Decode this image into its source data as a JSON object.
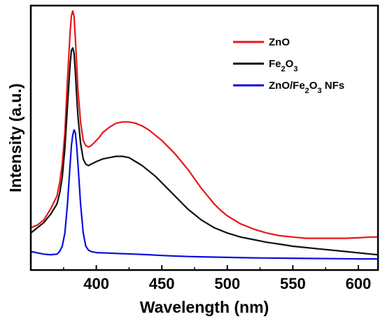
{
  "chart_data": {
    "type": "line",
    "xlabel": "Wavelength (nm)",
    "ylabel": "Intensity (a.u.)",
    "xlim": [
      350,
      615
    ],
    "ylim": [
      0,
      1
    ],
    "xticks": [
      400,
      450,
      500,
      550,
      600
    ],
    "y_ticks_labeled": false,
    "grid": false,
    "legend_position": "top-right",
    "series": [
      {
        "name": "ZnO",
        "color": "#e8161b",
        "x": [
          350,
          355,
          360,
          365,
          370,
          372,
          374,
          376,
          378,
          380,
          381,
          382,
          383,
          384,
          385,
          386,
          388,
          390,
          392,
          394,
          396,
          398,
          400,
          402,
          405,
          410,
          415,
          420,
          425,
          430,
          435,
          440,
          445,
          450,
          455,
          460,
          465,
          470,
          475,
          480,
          485,
          490,
          495,
          500,
          510,
          520,
          530,
          540,
          550,
          560,
          570,
          580,
          590,
          600,
          610,
          615
        ],
        "y": [
          0.16,
          0.17,
          0.19,
          0.23,
          0.28,
          0.33,
          0.4,
          0.52,
          0.72,
          0.9,
          0.96,
          0.98,
          0.96,
          0.88,
          0.78,
          0.68,
          0.56,
          0.49,
          0.47,
          0.465,
          0.47,
          0.48,
          0.49,
          0.5,
          0.52,
          0.54,
          0.555,
          0.56,
          0.56,
          0.555,
          0.545,
          0.53,
          0.51,
          0.49,
          0.465,
          0.44,
          0.41,
          0.38,
          0.345,
          0.31,
          0.28,
          0.25,
          0.225,
          0.205,
          0.175,
          0.155,
          0.14,
          0.13,
          0.125,
          0.12,
          0.12,
          0.12,
          0.12,
          0.122,
          0.125,
          0.125
        ]
      },
      {
        "name": "Fe2O3",
        "color": "#111111",
        "x": [
          350,
          355,
          360,
          365,
          370,
          372,
          374,
          376,
          378,
          380,
          381,
          382,
          383,
          384,
          385,
          386,
          388,
          390,
          392,
          394,
          396,
          398,
          400,
          405,
          410,
          415,
          420,
          425,
          430,
          435,
          440,
          445,
          450,
          455,
          460,
          465,
          470,
          475,
          480,
          485,
          490,
          495,
          500,
          510,
          520,
          530,
          540,
          550,
          560,
          570,
          580,
          590,
          600,
          610,
          615
        ],
        "y": [
          0.14,
          0.16,
          0.18,
          0.21,
          0.25,
          0.29,
          0.35,
          0.46,
          0.62,
          0.78,
          0.83,
          0.84,
          0.82,
          0.75,
          0.66,
          0.58,
          0.48,
          0.42,
          0.4,
          0.395,
          0.4,
          0.405,
          0.41,
          0.42,
          0.425,
          0.43,
          0.43,
          0.425,
          0.41,
          0.395,
          0.375,
          0.355,
          0.33,
          0.305,
          0.28,
          0.255,
          0.23,
          0.21,
          0.19,
          0.175,
          0.16,
          0.15,
          0.14,
          0.125,
          0.115,
          0.105,
          0.098,
          0.09,
          0.085,
          0.08,
          0.075,
          0.07,
          0.065,
          0.06,
          0.058
        ]
      },
      {
        "name": "ZnO/Fe2O3 NFs",
        "color": "#0d0de0",
        "x": [
          350,
          355,
          360,
          365,
          370,
          372,
          374,
          376,
          378,
          380,
          381,
          382,
          383,
          384,
          385,
          386,
          388,
          390,
          392,
          394,
          396,
          398,
          400,
          410,
          420,
          430,
          440,
          450,
          460,
          470,
          480,
          490,
          500,
          520,
          540,
          560,
          580,
          600,
          615
        ],
        "y": [
          0.07,
          0.065,
          0.06,
          0.058,
          0.06,
          0.07,
          0.09,
          0.14,
          0.25,
          0.4,
          0.47,
          0.51,
          0.53,
          0.52,
          0.47,
          0.4,
          0.25,
          0.14,
          0.09,
          0.075,
          0.07,
          0.068,
          0.066,
          0.064,
          0.062,
          0.06,
          0.058,
          0.055,
          0.053,
          0.051,
          0.05,
          0.049,
          0.048,
          0.046,
          0.045,
          0.044,
          0.043,
          0.042,
          0.042
        ]
      }
    ]
  },
  "legend": {
    "items": [
      {
        "label_parts": [
          "ZnO"
        ]
      },
      {
        "label_parts": [
          "Fe",
          "2",
          "O",
          "3"
        ]
      },
      {
        "label_parts": [
          "ZnO/Fe",
          "2",
          "O",
          "3",
          " NFs"
        ]
      }
    ]
  }
}
